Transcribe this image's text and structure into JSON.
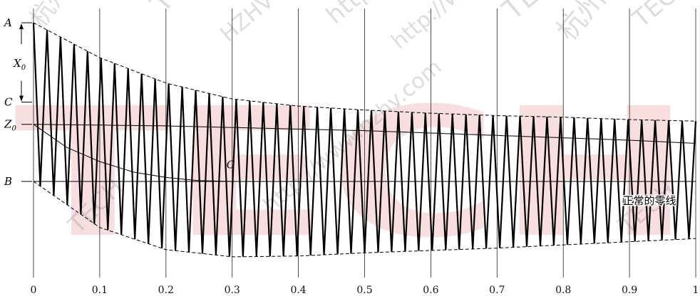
{
  "chart_data": {
    "type": "line",
    "title": "",
    "xlabel": "",
    "ylabel": "",
    "xlim": [
      0,
      1
    ],
    "x_ticks": [
      "0",
      "0.1",
      "0.2",
      "0.3",
      "0.4",
      "0.5",
      "0.6",
      "0.7",
      "0.8",
      "0.9",
      "1"
    ],
    "ylim": [
      -1.08,
      2.32
    ],
    "y_level_labels": [
      {
        "label": "A",
        "value": 2.0
      },
      {
        "label": "C",
        "value": 1.0
      },
      {
        "label": "Z0",
        "value": 0.72
      },
      {
        "label": "B",
        "value": 0.0
      }
    ],
    "dimension_label": "X0",
    "annotations": [
      {
        "text": "C",
        "x": 0.3,
        "y": 0.2
      },
      {
        "text": "正常的零线",
        "x": 0.93,
        "y": -0.25
      }
    ],
    "series": [
      {
        "style": "solid-oscillation",
        "cycles": 49,
        "x": [
          0,
          0.1,
          0.2,
          0.3,
          0.4,
          0.5,
          0.6,
          0.7,
          0.8,
          0.9,
          1
        ],
        "upper": [
          2.0,
          1.56,
          1.24,
          1.04,
          0.95,
          0.9,
          0.86,
          0.83,
          0.81,
          0.78,
          0.76
        ],
        "lower": [
          0.0,
          -0.58,
          -0.86,
          -0.95,
          -0.94,
          -0.9,
          -0.87,
          -0.84,
          -0.8,
          -0.76,
          -0.72
        ]
      },
      {
        "style": "dashed-envelope",
        "x": [
          0,
          0.1,
          0.2,
          0.3,
          0.4,
          0.5,
          0.6,
          0.7,
          0.8,
          0.9,
          1
        ],
        "values": [
          2.0,
          1.56,
          1.24,
          1.04,
          0.95,
          0.9,
          0.86,
          0.83,
          0.81,
          0.78,
          0.76
        ]
      },
      {
        "style": "dashed-envelope",
        "x": [
          0,
          0.1,
          0.2,
          0.3,
          0.4,
          0.5,
          0.6,
          0.7,
          0.8,
          0.9,
          1
        ],
        "values": [
          0.0,
          -0.58,
          -0.86,
          -0.95,
          -0.94,
          -0.9,
          -0.87,
          -0.84,
          -0.8,
          -0.76,
          -0.72
        ]
      },
      {
        "style": "solid-decay",
        "x": [
          0,
          0.05,
          0.1,
          0.15,
          0.2,
          0.25,
          0.3,
          0.35,
          0.4,
          1
        ],
        "values": [
          0.72,
          0.43,
          0.25,
          0.12,
          0.05,
          0.01,
          0.0,
          0.0,
          0.0,
          0.0
        ]
      },
      {
        "style": "solid-centerline",
        "x": [
          0,
          0.1,
          0.2,
          0.3,
          0.4,
          0.5,
          0.6,
          0.7,
          0.8,
          0.9,
          1
        ],
        "values": [
          0.72,
          0.71,
          0.7,
          0.68,
          0.66,
          0.64,
          0.61,
          0.58,
          0.55,
          0.52,
          0.48
        ]
      }
    ],
    "grid": "vertical"
  },
  "watermark": {
    "texts": [
      "杭州高电",
      "TECH",
      "HZHV",
      "http://www.hzhv.com",
      "http://www.hzhv.com",
      "TECH",
      "杭州高电",
      "TECH",
      "TECH",
      "http://www.hzhv.com",
      "TECH"
    ],
    "big": "TECH",
    "color": "#f3c4c4"
  }
}
